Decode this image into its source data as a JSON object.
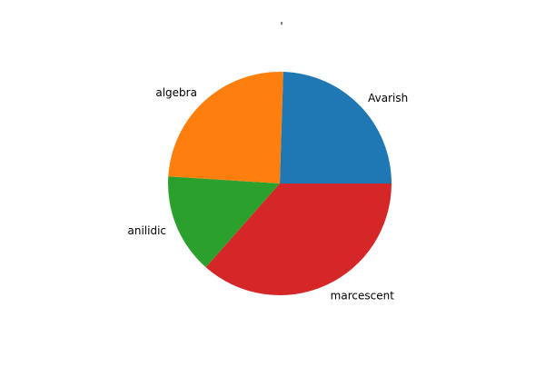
{
  "chart_data": {
    "type": "pie",
    "title": "'",
    "start_angle_deg": 0,
    "direction": "counterclockwise",
    "slices": [
      {
        "label": "Avarish",
        "value": 24.5,
        "color": "#1f77b4"
      },
      {
        "label": "algebra",
        "value": 24.5,
        "color": "#ff7f0e"
      },
      {
        "label": "anilidic",
        "value": 14.5,
        "color": "#2ca02c"
      },
      {
        "label": "marcescent",
        "value": 36.5,
        "color": "#d62728"
      }
    ]
  }
}
